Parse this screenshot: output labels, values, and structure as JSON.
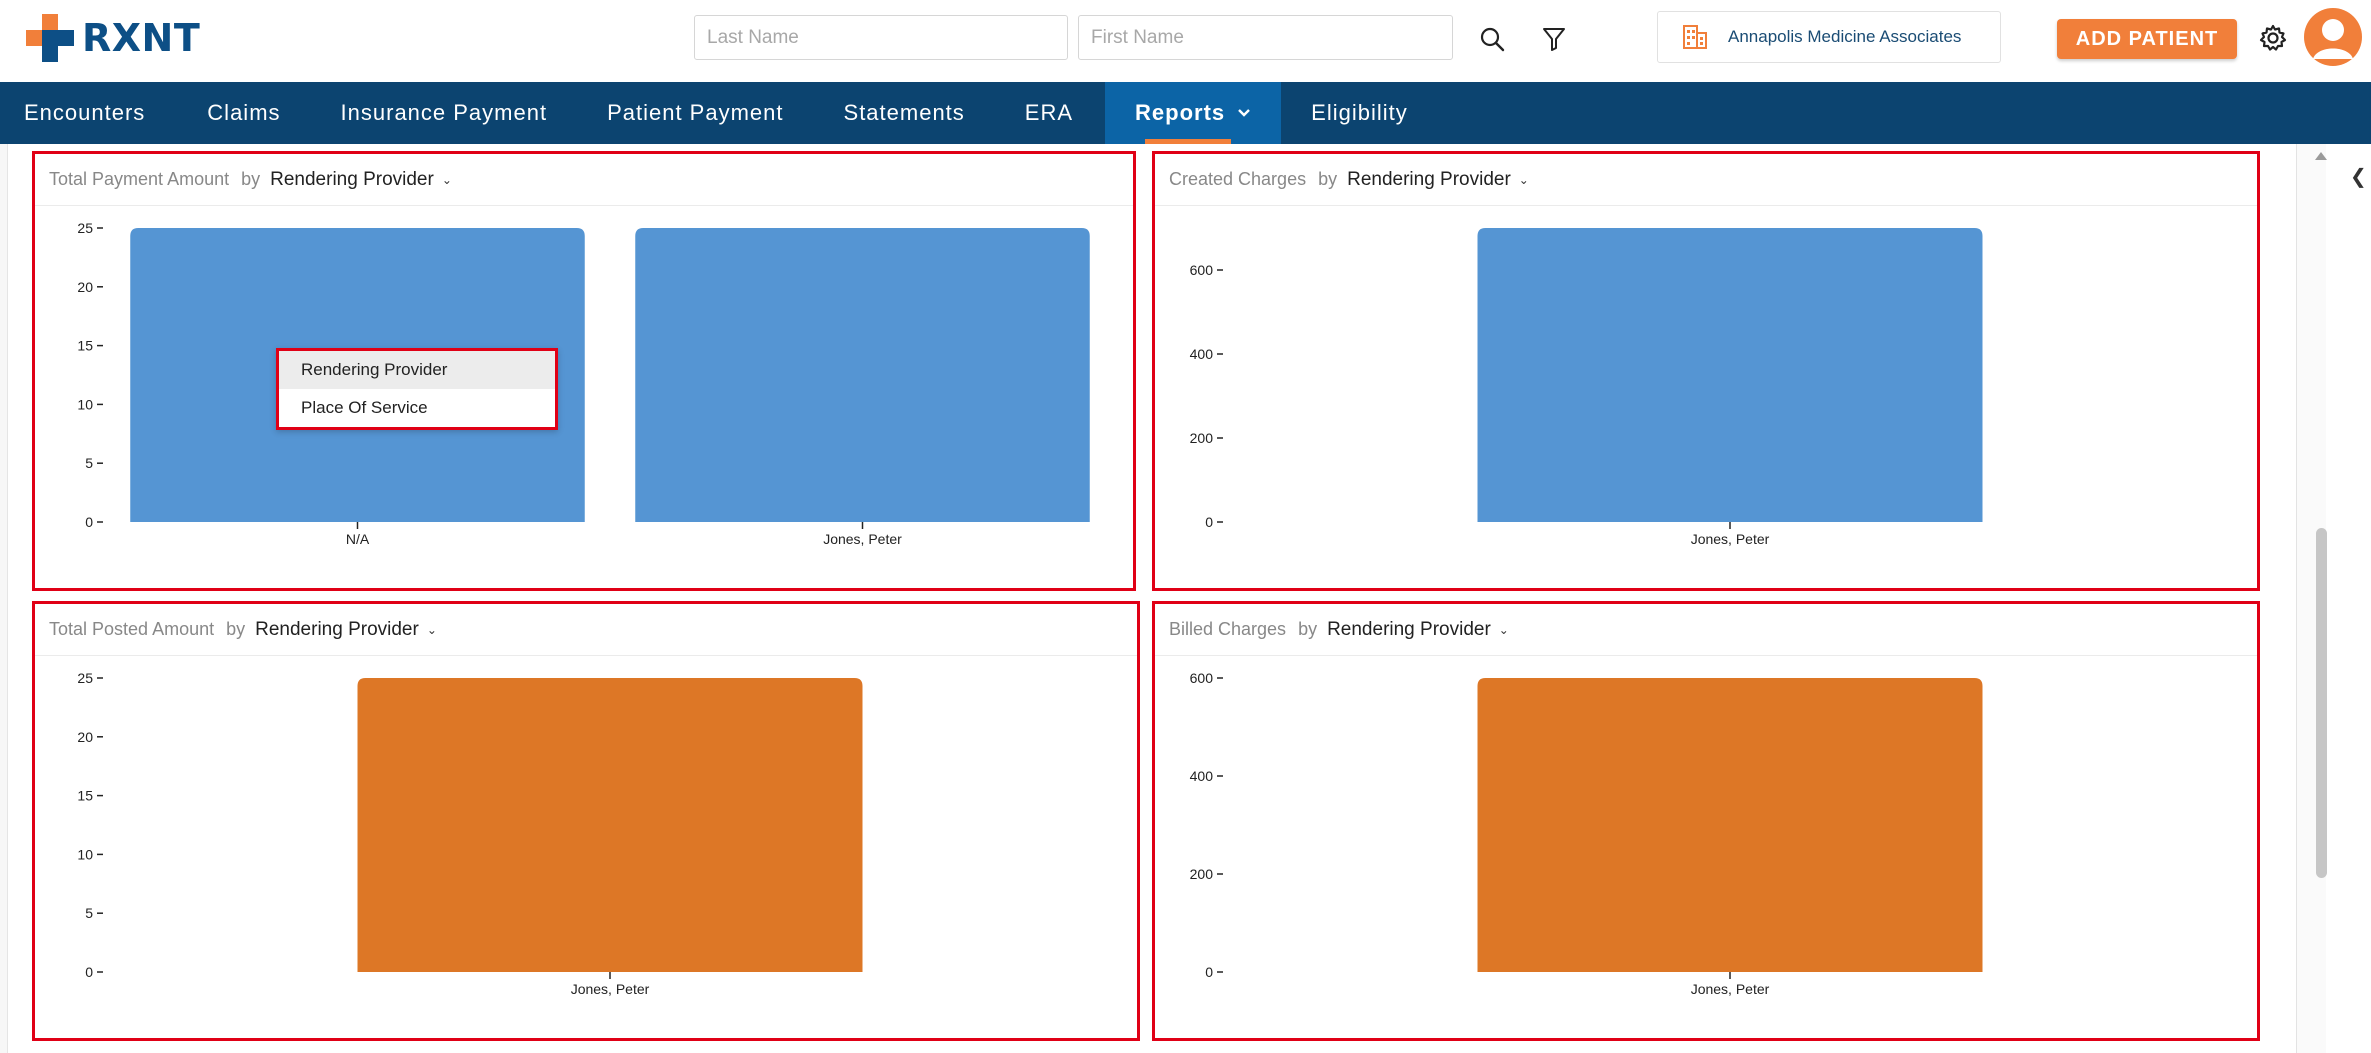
{
  "header": {
    "logo_text": "RXNT",
    "last_name_placeholder": "Last Name",
    "first_name_placeholder": "First Name",
    "practice_name": "Annapolis Medicine Associates",
    "add_patient_label": "ADD PATIENT"
  },
  "nav": {
    "items": [
      {
        "label": "Encounters"
      },
      {
        "label": "Claims"
      },
      {
        "label": "Insurance Payment"
      },
      {
        "label": "Patient Payment"
      },
      {
        "label": "Statements"
      },
      {
        "label": "ERA"
      },
      {
        "label": "Reports"
      },
      {
        "label": "Eligibility"
      }
    ],
    "active": "Reports"
  },
  "colors": {
    "brand_navy": "#0c4470",
    "nav_active": "#0c64a6",
    "accent_orange": "#f17f3a",
    "bar_blue": "#5595d3",
    "bar_orange": "#dd7726",
    "highlight_red": "#e00016"
  },
  "panels": [
    {
      "title": "Total Payment Amount",
      "by": "by",
      "group_by": "Rendering Provider"
    },
    {
      "title": "Created Charges",
      "by": "by",
      "group_by": "Rendering Provider"
    },
    {
      "title": "Total Posted Amount",
      "by": "by",
      "group_by": "Rendering Provider"
    },
    {
      "title": "Billed Charges",
      "by": "by",
      "group_by": "Rendering Provider"
    }
  ],
  "dropdown": {
    "options": [
      "Rendering Provider",
      "Place Of Service"
    ],
    "selected": "Rendering Provider"
  },
  "chart_data": [
    {
      "type": "bar",
      "title": "Total Payment Amount",
      "categories": [
        "N/A",
        "Jones, Peter"
      ],
      "values": [
        25,
        25
      ],
      "yticks": [
        0,
        5,
        10,
        15,
        20,
        25
      ],
      "ylim": [
        0,
        25
      ],
      "color": "#5595d3"
    },
    {
      "type": "bar",
      "title": "Created Charges",
      "categories": [
        "Jones, Peter"
      ],
      "values": [
        700
      ],
      "yticks": [
        0,
        200,
        400,
        600
      ],
      "ylim": [
        0,
        700
      ],
      "color": "#5595d3"
    },
    {
      "type": "bar",
      "title": "Total Posted Amount",
      "categories": [
        "Jones, Peter"
      ],
      "values": [
        25
      ],
      "yticks": [
        0,
        5,
        10,
        15,
        20,
        25
      ],
      "ylim": [
        0,
        25
      ],
      "color": "#dd7726"
    },
    {
      "type": "bar",
      "title": "Billed Charges",
      "categories": [
        "Jones, Peter"
      ],
      "values": [
        600
      ],
      "yticks": [
        0,
        200,
        400,
        600
      ],
      "ylim": [
        0,
        600
      ],
      "color": "#dd7726"
    }
  ]
}
